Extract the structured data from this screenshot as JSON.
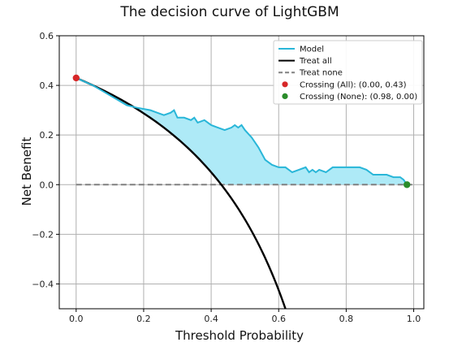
{
  "chart_data": {
    "type": "line",
    "title": "The decision curve of LightGBM",
    "xlabel": "Threshold Probability",
    "ylabel": "Net Benefit",
    "xlim": [
      -0.05,
      1.03
    ],
    "ylim": [
      -0.5,
      0.6
    ],
    "xticks": [
      "0.0",
      "0.2",
      "0.4",
      "0.6",
      "0.8",
      "1.0"
    ],
    "yticks": [
      "−0.4",
      "−0.2",
      "0.0",
      "0.2",
      "0.4",
      "0.6"
    ],
    "grid": true,
    "legend_position": "top-right",
    "series": [
      {
        "name": "Model",
        "style": "line",
        "color": "#29b6d8",
        "fill": "#aeeaf7",
        "x": [
          0.0,
          0.05,
          0.1,
          0.15,
          0.18,
          0.22,
          0.24,
          0.26,
          0.28,
          0.29,
          0.3,
          0.32,
          0.34,
          0.35,
          0.36,
          0.38,
          0.4,
          0.42,
          0.44,
          0.46,
          0.47,
          0.48,
          0.49,
          0.5,
          0.52,
          0.54,
          0.56,
          0.58,
          0.6,
          0.62,
          0.64,
          0.66,
          0.68,
          0.69,
          0.7,
          0.71,
          0.72,
          0.74,
          0.76,
          0.78,
          0.8,
          0.84,
          0.86,
          0.88,
          0.9,
          0.92,
          0.94,
          0.96,
          0.97,
          0.98
        ],
        "y": [
          0.43,
          0.4,
          0.36,
          0.32,
          0.31,
          0.3,
          0.29,
          0.28,
          0.29,
          0.3,
          0.27,
          0.27,
          0.26,
          0.27,
          0.25,
          0.26,
          0.24,
          0.23,
          0.22,
          0.23,
          0.24,
          0.23,
          0.24,
          0.22,
          0.19,
          0.15,
          0.1,
          0.08,
          0.07,
          0.07,
          0.05,
          0.06,
          0.07,
          0.05,
          0.06,
          0.05,
          0.06,
          0.05,
          0.07,
          0.07,
          0.07,
          0.07,
          0.06,
          0.04,
          0.04,
          0.04,
          0.03,
          0.03,
          0.02,
          0.0
        ]
      },
      {
        "name": "Treat all",
        "style": "line",
        "color": "#000000",
        "formula": "0.43 - 0.57 * t / (1 - t)",
        "x_range": [
          0.0,
          0.62
        ]
      },
      {
        "name": "Treat none",
        "style": "dashed",
        "color": "#808080",
        "x": [
          0.0,
          1.0
        ],
        "y": [
          0.0,
          0.0
        ]
      },
      {
        "name": "Crossing (All): (0.00, 0.43)",
        "style": "point",
        "color": "#d62728",
        "x": [
          0.0
        ],
        "y": [
          0.43
        ]
      },
      {
        "name": "Crossing (None): (0.98, 0.00)",
        "style": "point",
        "color": "#2a8c2a",
        "x": [
          0.98
        ],
        "y": [
          0.0
        ]
      }
    ]
  }
}
